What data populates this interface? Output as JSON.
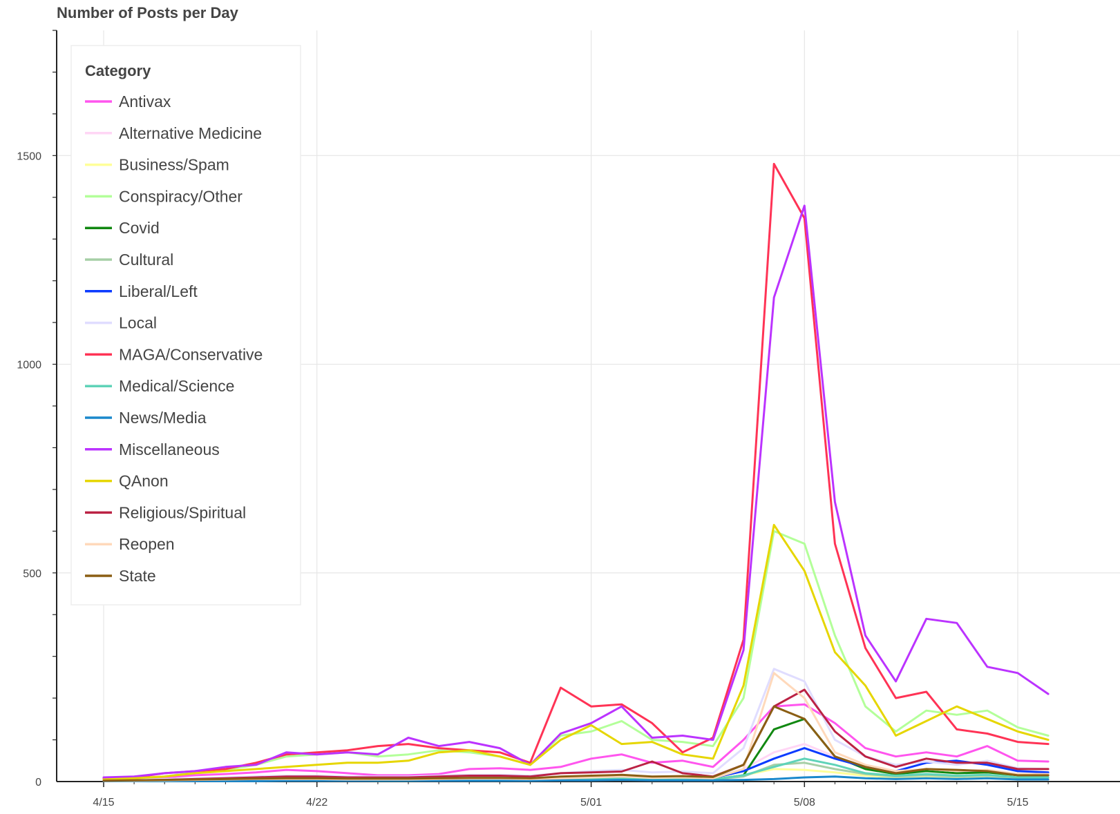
{
  "chart_data": {
    "type": "line",
    "title": "Number of Posts per Day",
    "xlabel": "",
    "ylabel": "",
    "x": [
      "4/15",
      "4/16",
      "4/17",
      "4/18",
      "4/19",
      "4/20",
      "4/21",
      "4/22",
      "4/23",
      "4/24",
      "4/25",
      "4/26",
      "4/27",
      "4/28",
      "4/29",
      "4/30",
      "5/01",
      "5/02",
      "5/03",
      "5/04",
      "5/05",
      "5/06",
      "5/07",
      "5/08",
      "5/09",
      "5/10",
      "5/11",
      "5/12",
      "5/13",
      "5/14",
      "5/15",
      "5/16"
    ],
    "x_tick_labels": [
      "4/15",
      "4/22",
      "5/01",
      "5/08",
      "5/15"
    ],
    "y_ticks": [
      0,
      500,
      1000,
      1500
    ],
    "ylim": [
      0,
      1800
    ],
    "grid": true,
    "legend": {
      "title": "Category",
      "placement": "top-left"
    },
    "series": [
      {
        "name": "Antivax",
        "color": "#ff55ee",
        "values": [
          5,
          7,
          10,
          15,
          18,
          22,
          28,
          25,
          20,
          15,
          15,
          18,
          30,
          32,
          28,
          35,
          55,
          65,
          45,
          50,
          35,
          100,
          180,
          185,
          140,
          80,
          60,
          70,
          60,
          85,
          50,
          48
        ]
      },
      {
        "name": "Alternative Medicine",
        "color": "#ffd6f5",
        "values": [
          2,
          2,
          3,
          4,
          4,
          5,
          6,
          6,
          5,
          5,
          5,
          6,
          8,
          9,
          8,
          10,
          14,
          16,
          12,
          13,
          10,
          30,
          70,
          90,
          60,
          35,
          22,
          25,
          22,
          28,
          18,
          16
        ]
      },
      {
        "name": "Business/Spam",
        "color": "#ffff99",
        "values": [
          2,
          2,
          3,
          3,
          3,
          4,
          4,
          4,
          4,
          3,
          3,
          4,
          5,
          5,
          5,
          6,
          8,
          9,
          7,
          8,
          6,
          15,
          30,
          28,
          22,
          14,
          10,
          12,
          10,
          12,
          8,
          8
        ]
      },
      {
        "name": "Conspiracy/Other",
        "color": "#b3ff99",
        "values": [
          5,
          8,
          12,
          22,
          28,
          40,
          60,
          65,
          70,
          60,
          65,
          75,
          70,
          60,
          40,
          110,
          120,
          145,
          100,
          95,
          85,
          200,
          600,
          570,
          350,
          180,
          120,
          170,
          160,
          170,
          130,
          110
        ]
      },
      {
        "name": "Covid",
        "color": "#118811",
        "values": [
          1,
          1,
          1,
          2,
          2,
          2,
          3,
          3,
          3,
          2,
          2,
          3,
          4,
          4,
          3,
          5,
          6,
          7,
          5,
          6,
          5,
          15,
          125,
          150,
          60,
          30,
          18,
          25,
          20,
          22,
          15,
          15
        ]
      },
      {
        "name": "Cultural",
        "color": "#a6cfa6",
        "values": [
          1,
          1,
          2,
          2,
          2,
          3,
          3,
          3,
          3,
          3,
          3,
          3,
          4,
          4,
          4,
          5,
          6,
          7,
          5,
          6,
          5,
          12,
          40,
          45,
          30,
          18,
          12,
          15,
          12,
          14,
          10,
          10
        ]
      },
      {
        "name": "Liberal/Left",
        "color": "#0b3bff",
        "values": [
          1,
          1,
          2,
          4,
          5,
          6,
          8,
          8,
          7,
          6,
          6,
          7,
          8,
          8,
          7,
          10,
          12,
          14,
          10,
          11,
          9,
          25,
          55,
          80,
          55,
          35,
          25,
          45,
          50,
          40,
          25,
          22
        ]
      },
      {
        "name": "Local",
        "color": "#e0ddff",
        "values": [
          3,
          4,
          6,
          8,
          10,
          12,
          14,
          14,
          12,
          12,
          12,
          14,
          16,
          16,
          14,
          20,
          25,
          28,
          22,
          24,
          20,
          80,
          270,
          240,
          100,
          60,
          40,
          48,
          40,
          50,
          32,
          30
        ]
      },
      {
        "name": "MAGA/Conservative",
        "color": "#ff3355",
        "values": [
          8,
          10,
          20,
          25,
          30,
          45,
          65,
          70,
          75,
          85,
          90,
          80,
          75,
          70,
          45,
          225,
          180,
          185,
          140,
          70,
          105,
          340,
          1480,
          1350,
          570,
          320,
          200,
          215,
          125,
          115,
          95,
          90
        ]
      },
      {
        "name": "Medical/Science",
        "color": "#5fd3b8",
        "values": [
          1,
          1,
          2,
          2,
          2,
          3,
          3,
          3,
          3,
          3,
          3,
          3,
          4,
          4,
          4,
          5,
          6,
          7,
          5,
          6,
          5,
          15,
          35,
          55,
          40,
          20,
          14,
          18,
          14,
          16,
          10,
          10
        ]
      },
      {
        "name": "News/Media",
        "color": "#1a88cc",
        "values": [
          1,
          1,
          1,
          1,
          1,
          1,
          2,
          2,
          2,
          2,
          2,
          2,
          2,
          2,
          2,
          3,
          3,
          4,
          3,
          3,
          3,
          4,
          6,
          10,
          12,
          8,
          6,
          8,
          6,
          8,
          5,
          5
        ]
      },
      {
        "name": "Miscellaneous",
        "color": "#bb33ff",
        "values": [
          10,
          12,
          20,
          25,
          35,
          40,
          70,
          65,
          70,
          65,
          105,
          85,
          95,
          80,
          40,
          115,
          140,
          180,
          105,
          110,
          100,
          315,
          1160,
          1380,
          670,
          350,
          240,
          390,
          380,
          275,
          260,
          210
        ]
      },
      {
        "name": "QAnon",
        "color": "#e6d600",
        "values": [
          5,
          8,
          12,
          20,
          25,
          30,
          35,
          40,
          45,
          45,
          50,
          70,
          75,
          60,
          40,
          100,
          135,
          90,
          95,
          65,
          55,
          230,
          615,
          505,
          310,
          230,
          110,
          145,
          180,
          150,
          120,
          100
        ]
      },
      {
        "name": "Religious/Spiritual",
        "color": "#bb2244",
        "values": [
          2,
          3,
          4,
          6,
          8,
          10,
          12,
          12,
          10,
          10,
          10,
          12,
          14,
          14,
          12,
          20,
          22,
          24,
          48,
          20,
          12,
          40,
          180,
          220,
          120,
          60,
          35,
          55,
          45,
          45,
          30,
          30
        ]
      },
      {
        "name": "Reopen",
        "color": "#ffd9bb",
        "values": [
          2,
          2,
          3,
          4,
          5,
          6,
          6,
          6,
          5,
          5,
          5,
          6,
          7,
          7,
          6,
          8,
          10,
          12,
          9,
          10,
          8,
          30,
          260,
          200,
          70,
          40,
          25,
          30,
          25,
          28,
          18,
          18
        ]
      },
      {
        "name": "State",
        "color": "#8b5e14",
        "values": [
          2,
          3,
          4,
          5,
          6,
          7,
          8,
          8,
          7,
          7,
          7,
          8,
          9,
          9,
          8,
          12,
          14,
          16,
          12,
          13,
          11,
          40,
          180,
          150,
          60,
          35,
          20,
          30,
          28,
          25,
          15,
          15
        ]
      }
    ]
  }
}
